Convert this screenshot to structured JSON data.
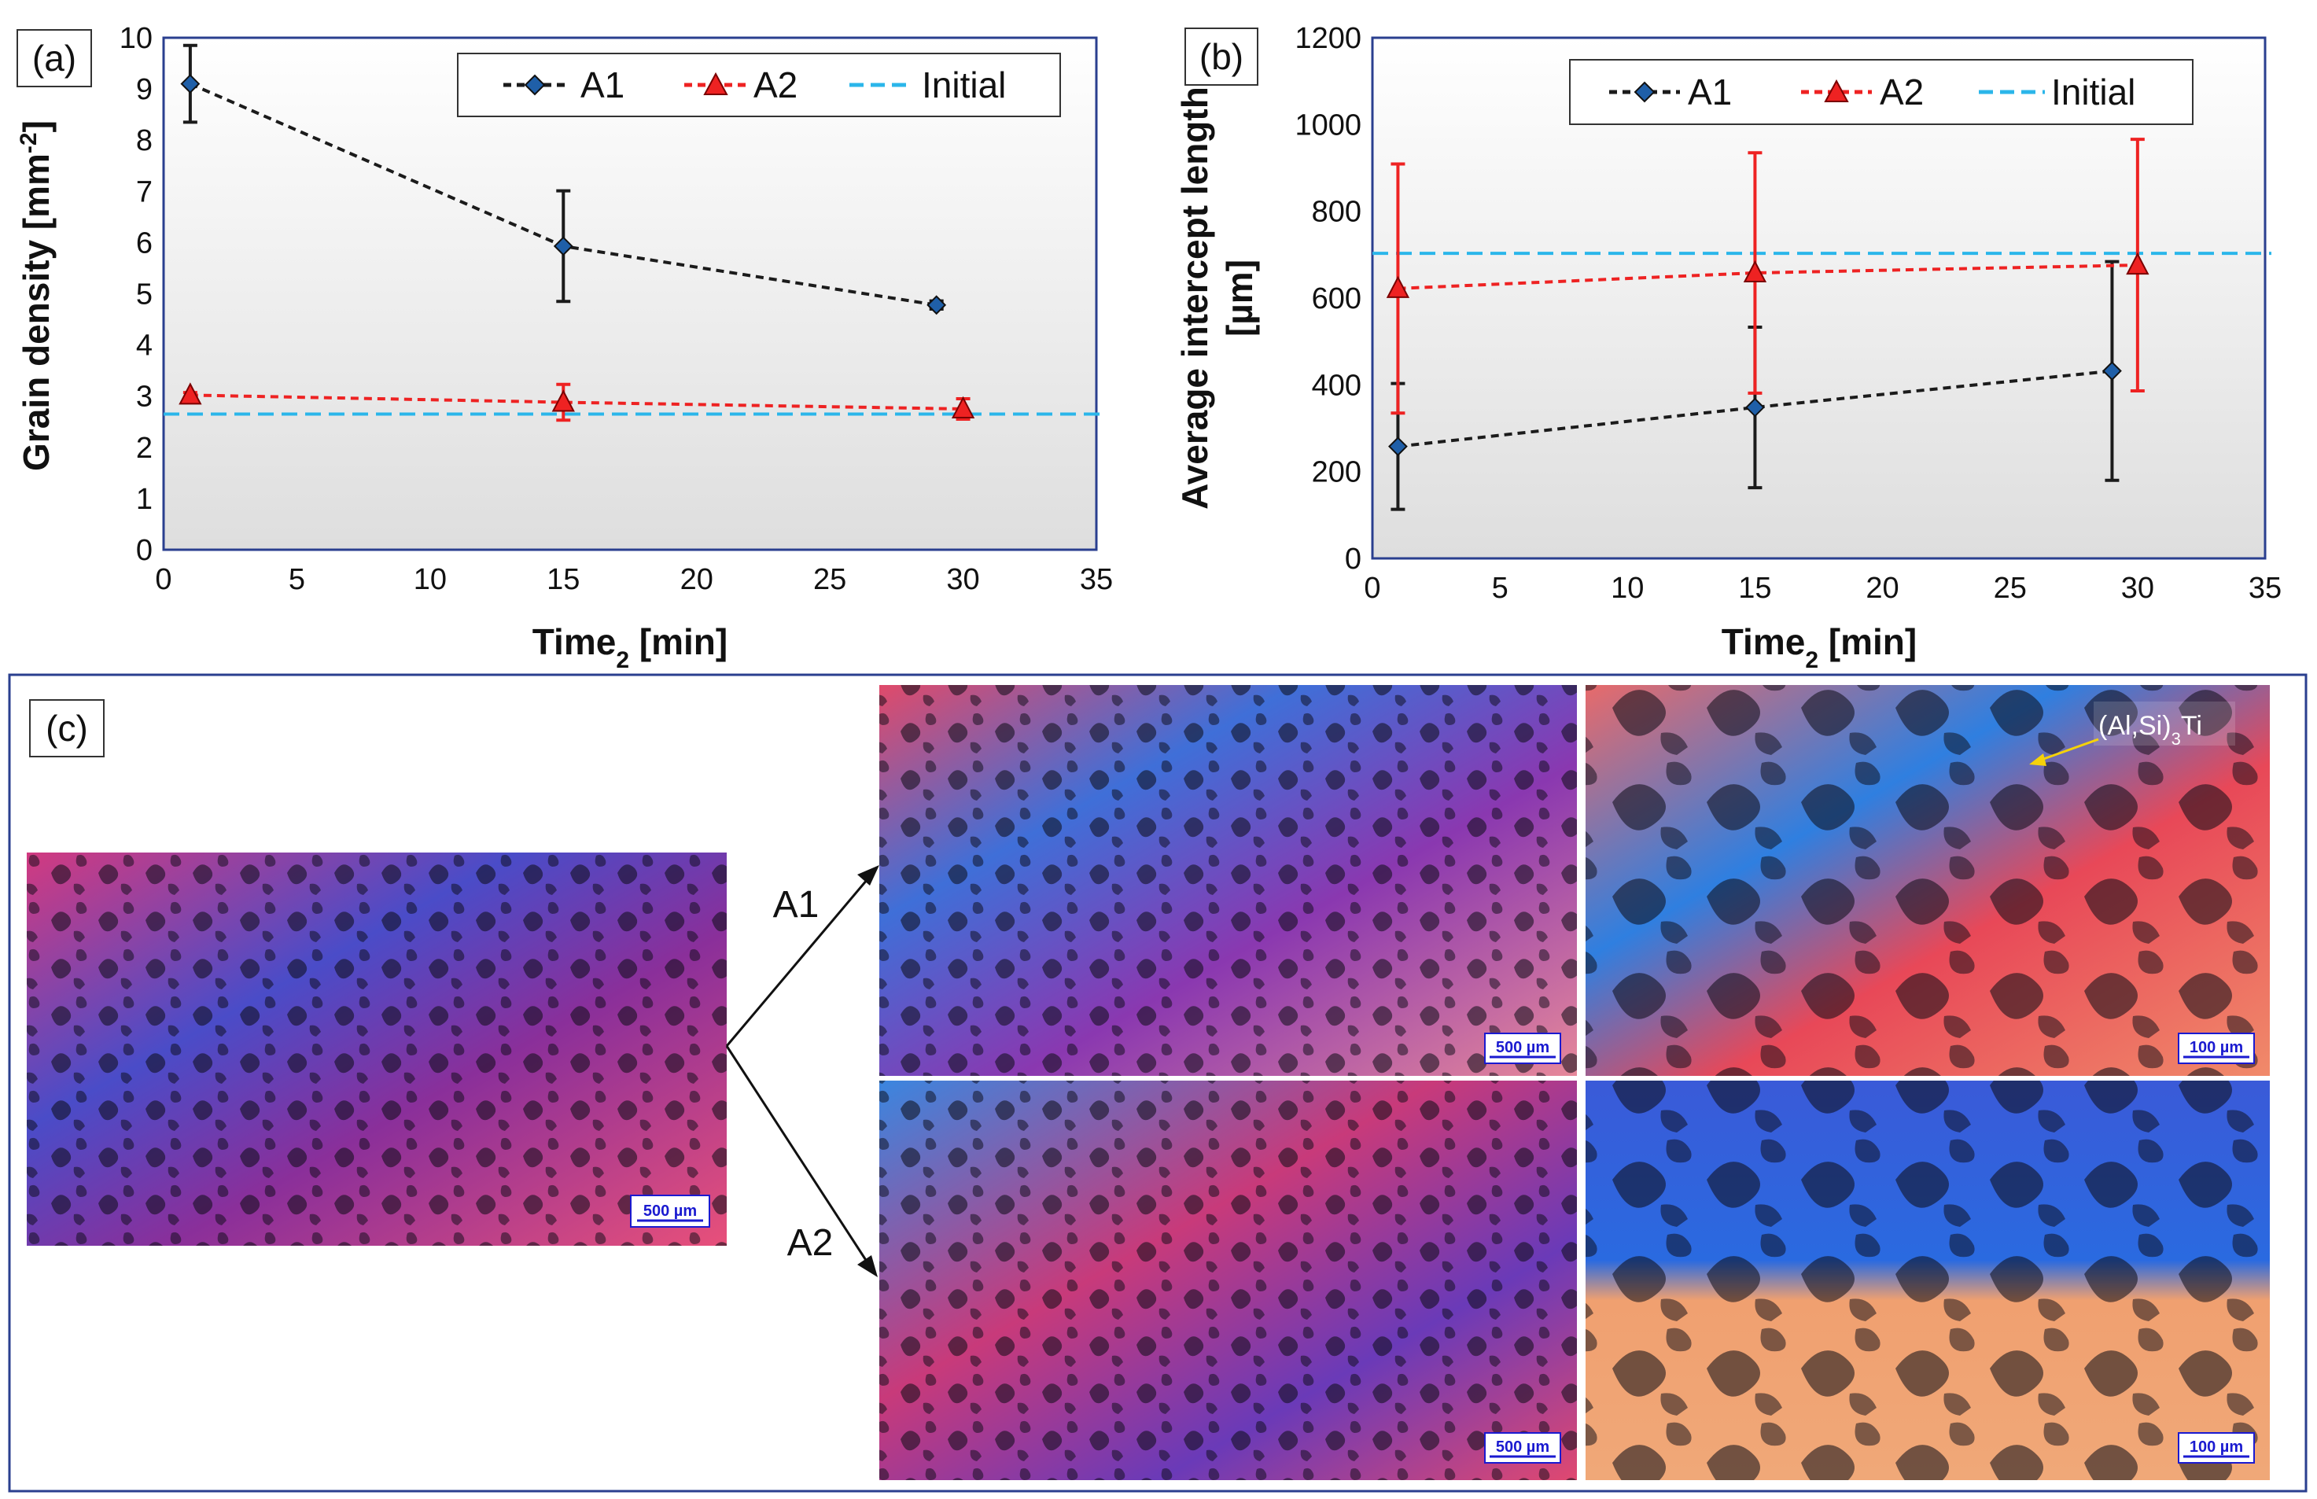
{
  "chart_data": [
    {
      "type": "line",
      "panel_label": "(a)",
      "ylabel_main": "Grain density [mm",
      "ylabel_sup": "-2",
      "ylabel_end": "]",
      "xlabel_main": "Time",
      "xlabel_sub": "2",
      "xlabel_end": " [min]",
      "xlim": [
        0,
        35
      ],
      "ylim": [
        0,
        10
      ],
      "xticks": [
        "0",
        "5",
        "10",
        "15",
        "20",
        "25",
        "30",
        "35"
      ],
      "yticks": [
        "0",
        "1",
        "2",
        "3",
        "4",
        "5",
        "6",
        "7",
        "8",
        "9",
        "10"
      ],
      "legend": {
        "position": "top-right",
        "entries": [
          "A1",
          "A2",
          "Initial"
        ]
      },
      "series": [
        {
          "name": "A1",
          "color": "#1b1b1b",
          "marker_color": "#1f5fa8",
          "marker": "diamond",
          "x": [
            1,
            15,
            29
          ],
          "y": [
            9.1,
            5.93,
            4.78
          ],
          "err": [
            0.75,
            1.08,
            0.08
          ]
        },
        {
          "name": "A2",
          "color": "#ee2222",
          "marker_color": "#ee2222",
          "marker": "triangle",
          "x": [
            1,
            15,
            30
          ],
          "y": [
            3.02,
            2.88,
            2.75
          ],
          "err": [
            0.05,
            0.35,
            0.2
          ]
        }
      ],
      "initial": {
        "name": "Initial",
        "y": 2.65,
        "color": "#2bb6ea"
      }
    },
    {
      "type": "line",
      "panel_label": "(b)",
      "ylabel_line1": "Average intercept length",
      "ylabel_line2": "[µm]",
      "xlabel_main": "Time",
      "xlabel_sub": "2",
      "xlabel_end": " [min]",
      "xlim": [
        0,
        35
      ],
      "ylim": [
        0,
        1200
      ],
      "xticks": [
        "0",
        "5",
        "10",
        "15",
        "20",
        "25",
        "30",
        "35"
      ],
      "yticks": [
        "0",
        "200",
        "400",
        "600",
        "800",
        "1000",
        "1200"
      ],
      "legend": {
        "position": "top-right",
        "entries": [
          "A1",
          "A2",
          "Initial"
        ]
      },
      "series": [
        {
          "name": "A1",
          "color": "#1b1b1b",
          "marker_color": "#1f5fa8",
          "marker": "diamond",
          "x": [
            1,
            15,
            29
          ],
          "y": [
            258,
            348,
            432
          ],
          "err": [
            145,
            185,
            252
          ]
        },
        {
          "name": "A2",
          "color": "#ee2222",
          "marker_color": "#ee2222",
          "marker": "triangle",
          "x": [
            1,
            15,
            30
          ],
          "y": [
            622,
            658,
            676
          ],
          "err": [
            287,
            277,
            290
          ]
        }
      ],
      "initial": {
        "name": "Initial",
        "y": 703,
        "color": "#2bb6ea"
      }
    }
  ],
  "micrographs": {
    "panel_label": "(c)",
    "branch_labels": [
      "A1",
      "A2"
    ],
    "phase_label_main": "(Al,Si)",
    "phase_label_sub": "3",
    "phase_label_end": "Ti",
    "images": [
      {
        "id": "initial",
        "scale_bar": "500 µm"
      },
      {
        "id": "a1-low",
        "scale_bar": "500 µm"
      },
      {
        "id": "a1-high",
        "scale_bar": "100 µm"
      },
      {
        "id": "a2-low",
        "scale_bar": "500 µm"
      },
      {
        "id": "a2-high",
        "scale_bar": "100 µm"
      }
    ]
  }
}
